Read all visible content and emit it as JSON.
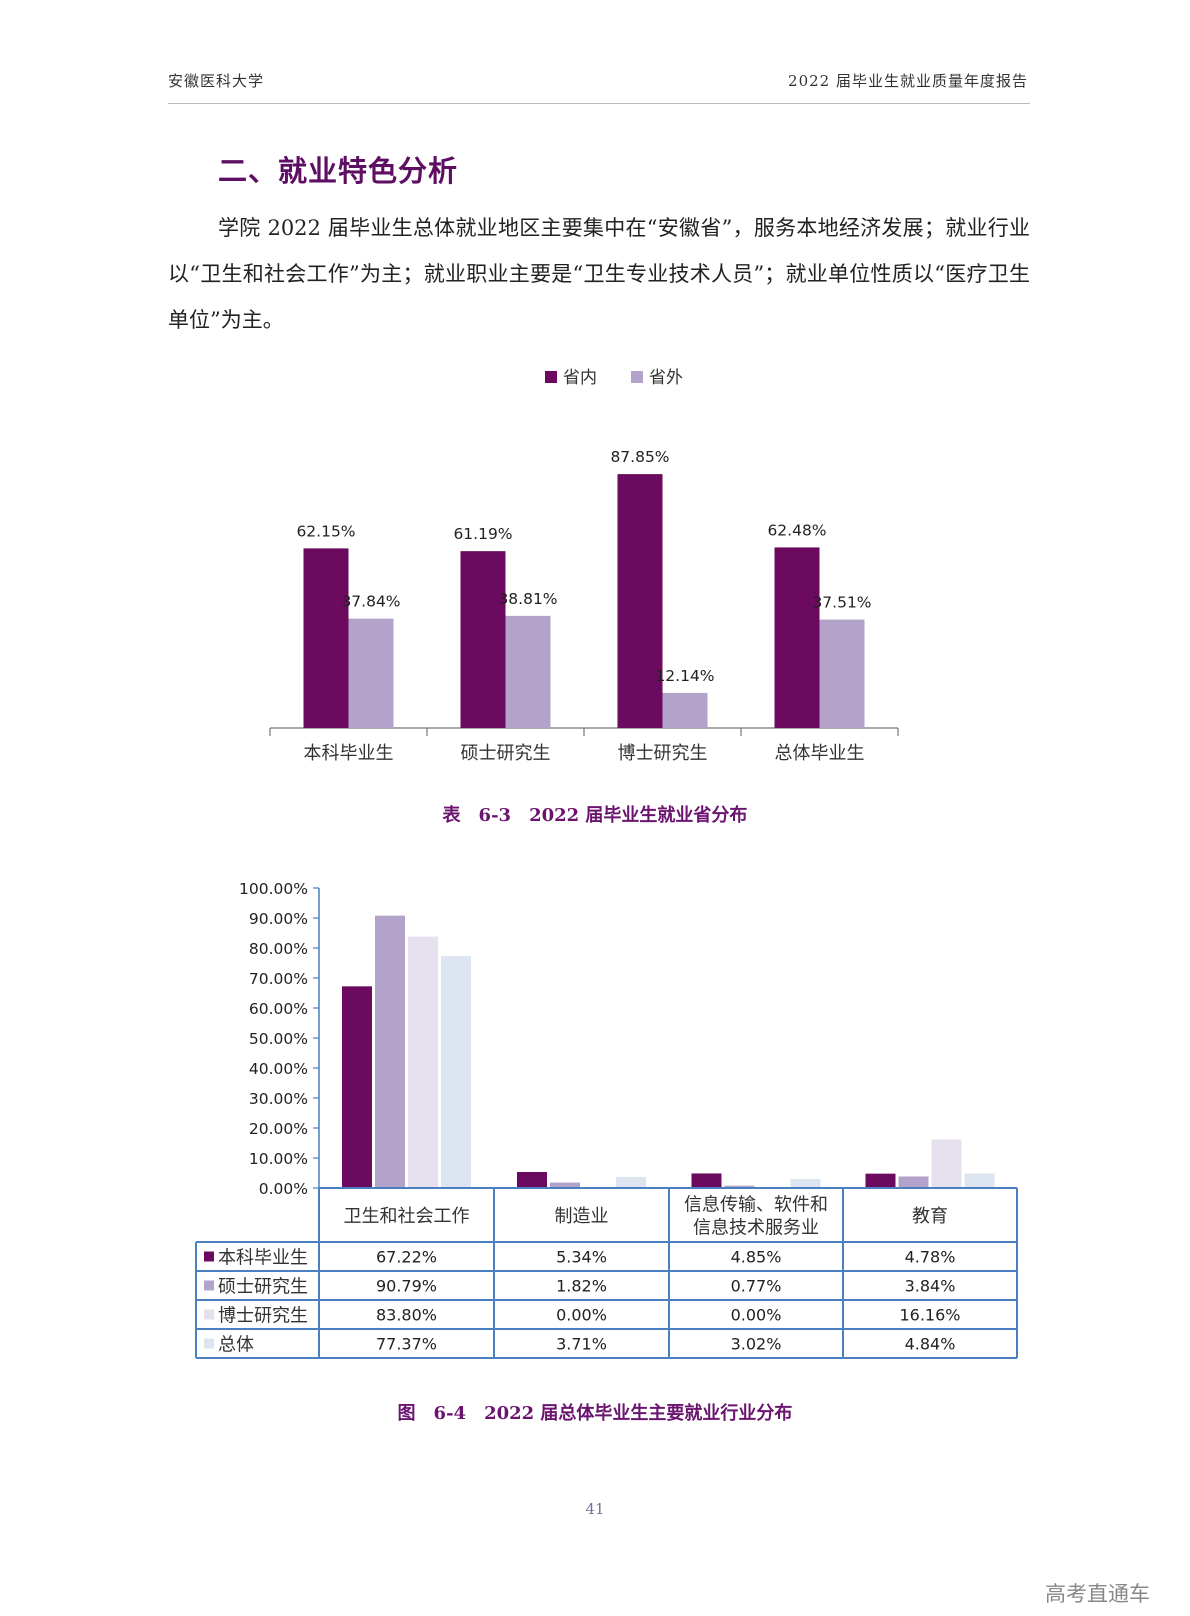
{
  "header": {
    "left": "安徽医科大学",
    "right": "2022 届毕业生就业质量年度报告"
  },
  "section_title": "二、就业特色分析",
  "paragraph": "学院 2022 届毕业生总体就业地区主要集中在“安徽省”，服务本地经济发展；就业行业以“卫生和社会工作”为主；就业职业主要是“卫生专业技术人员”；就业单位性质以“医疗卫生单位”为主。",
  "colors": {
    "dark_purple": "#6b0a5e",
    "mid_purple": "#b3a2c9",
    "pale_lilac": "#e6e0ee",
    "pale_blue": "#dde5f0",
    "title_purple": "#5e0f63",
    "table_border": "#4a7fc1"
  },
  "chart_data": [
    {
      "type": "bar",
      "categories": [
        "本科毕业生",
        "硕士研究生",
        "博士研究生",
        "总体毕业生"
      ],
      "series": [
        {
          "name": "省内",
          "values": [
            62.15,
            61.19,
            87.85,
            62.48
          ],
          "labels": [
            "62.15%",
            "61.19%",
            "87.85%",
            "62.48%"
          ]
        },
        {
          "name": "省外",
          "values": [
            37.84,
            38.81,
            12.14,
            37.51
          ],
          "labels": [
            "37.84%",
            "38.81%",
            "12.14%",
            "37.51%"
          ]
        }
      ],
      "ylim": [
        0,
        100
      ],
      "legend": "top-center",
      "title": "",
      "grid": false
    },
    {
      "type": "bar",
      "categories": [
        "卫生和社会工作",
        "制造业",
        "信息传输、软件和\n信息技术服务业",
        "教育"
      ],
      "series": [
        {
          "name": "本科毕业生",
          "values": [
            67.22,
            5.34,
            4.85,
            4.78
          ],
          "labels": [
            "67.22%",
            "5.34%",
            "4.85%",
            "4.78%"
          ]
        },
        {
          "name": "硕士研究生",
          "values": [
            90.79,
            1.82,
            0.77,
            3.84
          ],
          "labels": [
            "90.79%",
            "1.82%",
            "0.77%",
            "3.84%"
          ]
        },
        {
          "name": "博士研究生",
          "values": [
            83.8,
            0.0,
            0.0,
            16.16
          ],
          "labels": [
            "83.80%",
            "0.00%",
            "0.00%",
            "16.16%"
          ]
        },
        {
          "name": "总体",
          "values": [
            77.37,
            3.71,
            3.02,
            4.84
          ],
          "labels": [
            "77.37%",
            "3.71%",
            "3.02%",
            "4.84%"
          ]
        }
      ],
      "ylim": [
        0,
        100
      ],
      "yticks": [
        "0.00%",
        "10.00%",
        "20.00%",
        "30.00%",
        "40.00%",
        "50.00%",
        "60.00%",
        "70.00%",
        "80.00%",
        "90.00%",
        "100.00%"
      ],
      "legend": "data-table",
      "grid": false
    }
  ],
  "caption1": "表　6-3　2022 届毕业生就业省分布",
  "caption2": "图　6-4　2022 届总体毕业生主要就业行业分布",
  "page_number": "41",
  "watermark": "高考直通车"
}
